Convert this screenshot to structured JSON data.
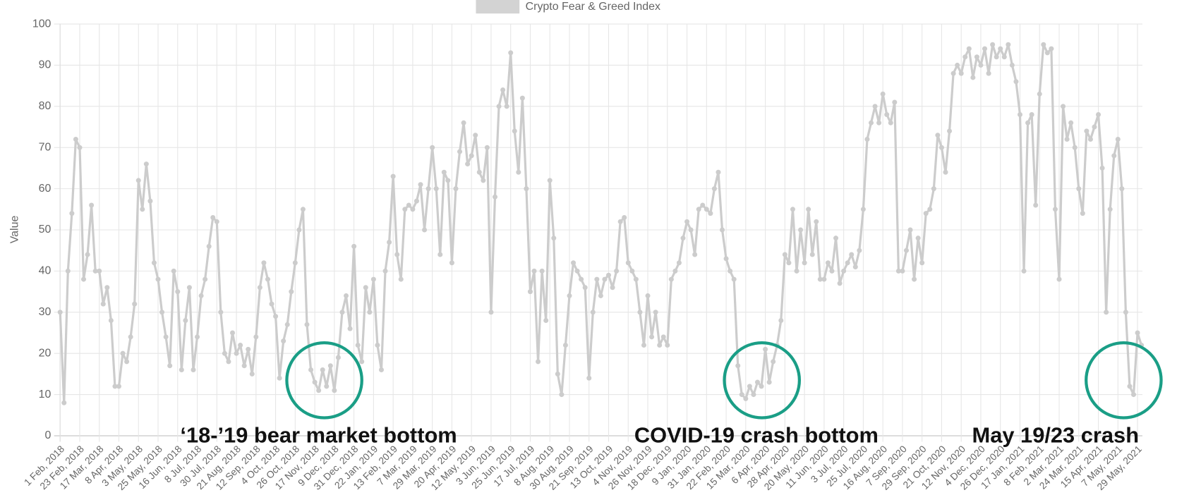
{
  "chart_data": {
    "type": "line",
    "legend": "Crypto Fear & Greed Index",
    "y_label": "Value",
    "color": "#cccccc",
    "grid": true,
    "ylim": [
      0,
      100
    ],
    "yticks": [
      0,
      10,
      20,
      30,
      40,
      50,
      60,
      70,
      80,
      90,
      100
    ],
    "categories": [
      "1 Feb, 2018",
      null,
      null,
      null,
      null,
      "23 Feb, 2018",
      null,
      null,
      null,
      null,
      "17 Mar, 2018",
      null,
      null,
      null,
      null,
      "8 Apr, 2018",
      null,
      null,
      null,
      null,
      "3 May, 2018",
      null,
      null,
      null,
      null,
      "25 May, 2018",
      null,
      null,
      null,
      null,
      "16 Jun, 2018",
      null,
      null,
      null,
      null,
      "8 Jul, 2018",
      null,
      null,
      null,
      null,
      "30 Jul, 2018",
      null,
      null,
      null,
      null,
      "21 Aug, 2018",
      null,
      null,
      null,
      null,
      "12 Sep, 2018",
      null,
      null,
      null,
      null,
      "4 Oct, 2018",
      null,
      null,
      null,
      null,
      "26 Oct, 2018",
      null,
      null,
      null,
      null,
      "17 Nov, 2018",
      null,
      null,
      null,
      null,
      "9 Dec, 2018",
      null,
      null,
      null,
      null,
      "31 Dec, 2018",
      null,
      null,
      null,
      null,
      "22 Jan, 2019",
      null,
      null,
      null,
      null,
      "13 Feb, 2019",
      null,
      null,
      null,
      null,
      "7 Mar, 2019",
      null,
      null,
      null,
      null,
      "29 Mar, 2019",
      null,
      null,
      null,
      null,
      "20 Apr, 2019",
      null,
      null,
      null,
      null,
      "12 May, 2019",
      null,
      null,
      null,
      null,
      "3 Jun, 2019",
      null,
      null,
      null,
      null,
      "25 Jun, 2019",
      null,
      null,
      null,
      null,
      "17 Jul, 2019",
      null,
      null,
      null,
      null,
      "8 Aug, 2019",
      null,
      null,
      null,
      null,
      "30 Aug, 2019",
      null,
      null,
      null,
      null,
      "21 Sep, 2019",
      null,
      null,
      null,
      null,
      "13 Oct, 2019",
      null,
      null,
      null,
      null,
      "4 Nov, 2019",
      null,
      null,
      null,
      null,
      "26 Nov, 2019",
      null,
      null,
      null,
      null,
      "18 Dec, 2019",
      null,
      null,
      null,
      null,
      "9 Jan, 2020",
      null,
      null,
      null,
      null,
      "31 Jan, 2020",
      null,
      null,
      null,
      null,
      "22 Feb, 2020",
      null,
      null,
      null,
      null,
      "15 Mar, 2020",
      null,
      null,
      null,
      null,
      "6 Apr, 2020",
      null,
      null,
      null,
      null,
      "28 Apr, 2020",
      null,
      null,
      null,
      null,
      "20 May, 2020",
      null,
      null,
      null,
      null,
      "11 Jun, 2020",
      null,
      null,
      null,
      null,
      "3 Jul, 2020",
      null,
      null,
      null,
      null,
      "25 Jul, 2020",
      null,
      null,
      null,
      null,
      "16 Aug, 2020",
      null,
      null,
      null,
      null,
      "7 Sep, 2020",
      null,
      null,
      null,
      null,
      "29 Sep, 2020",
      null,
      null,
      null,
      null,
      "21 Oct, 2020",
      null,
      null,
      null,
      null,
      "12 Nov, 2020",
      null,
      null,
      null,
      null,
      "4 Dec, 2020",
      null,
      null,
      null,
      null,
      "26 Dec, 2020",
      null,
      null,
      null,
      null,
      "17 Jan, 2021",
      null,
      null,
      null,
      null,
      "8 Feb, 2021",
      null,
      null,
      null,
      null,
      "2 Mar, 2021",
      null,
      null,
      null,
      null,
      "24 Mar, 2021",
      null,
      null,
      null,
      null,
      "15 Apr, 2021",
      null,
      null,
      null,
      null,
      "7 May, 2021",
      null,
      null,
      null,
      null,
      "29 May, 2021",
      null
    ],
    "values": [
      30,
      8,
      40,
      54,
      72,
      70,
      38,
      44,
      56,
      40,
      40,
      32,
      36,
      28,
      12,
      12,
      20,
      18,
      24,
      32,
      62,
      55,
      66,
      57,
      42,
      38,
      30,
      24,
      17,
      40,
      35,
      16,
      28,
      36,
      16,
      24,
      34,
      38,
      46,
      53,
      52,
      30,
      20,
      18,
      25,
      20,
      22,
      17,
      21,
      15,
      24,
      36,
      42,
      38,
      32,
      29,
      14,
      23,
      27,
      35,
      42,
      50,
      55,
      27,
      16,
      13,
      11,
      16,
      12,
      17,
      11,
      19,
      30,
      34,
      26,
      46,
      22,
      18,
      36,
      30,
      38,
      22,
      16,
      40,
      47,
      63,
      44,
      38,
      55,
      56,
      55,
      57,
      61,
      50,
      60,
      70,
      60,
      44,
      64,
      62,
      42,
      60,
      69,
      76,
      66,
      68,
      73,
      64,
      62,
      70,
      30,
      58,
      80,
      84,
      80,
      93,
      74,
      64,
      82,
      60,
      35,
      40,
      18,
      40,
      28,
      62,
      48,
      15,
      10,
      22,
      34,
      42,
      40,
      38,
      36,
      14,
      30,
      38,
      34,
      38,
      39,
      36,
      40,
      52,
      53,
      42,
      40,
      38,
      30,
      22,
      34,
      24,
      30,
      22,
      24,
      22,
      38,
      40,
      42,
      48,
      52,
      50,
      44,
      55,
      56,
      55,
      54,
      60,
      64,
      50,
      43,
      40,
      38,
      17,
      10,
      9,
      12,
      10,
      13,
      12,
      21,
      13,
      18,
      22,
      28,
      44,
      42,
      55,
      40,
      50,
      42,
      55,
      44,
      52,
      38,
      38,
      42,
      40,
      48,
      37,
      40,
      42,
      44,
      41,
      45,
      55,
      72,
      76,
      80,
      76,
      83,
      78,
      76,
      81,
      40,
      40,
      45,
      50,
      38,
      48,
      42,
      54,
      55,
      60,
      73,
      70,
      64,
      74,
      88,
      90,
      88,
      92,
      94,
      87,
      92,
      90,
      94,
      88,
      95,
      92,
      94,
      92,
      95,
      90,
      86,
      78,
      40,
      76,
      78,
      56,
      83,
      95,
      93,
      94,
      55,
      38,
      80,
      72,
      76,
      70,
      60,
      54,
      74,
      72,
      75,
      78,
      65,
      30,
      55,
      68,
      72,
      60,
      30,
      12,
      10,
      25,
      22
    ],
    "annotations": [
      "‘18-’19 bear market bottom",
      "COVID-19 crash bottom",
      "May 19/23 crash"
    ]
  }
}
